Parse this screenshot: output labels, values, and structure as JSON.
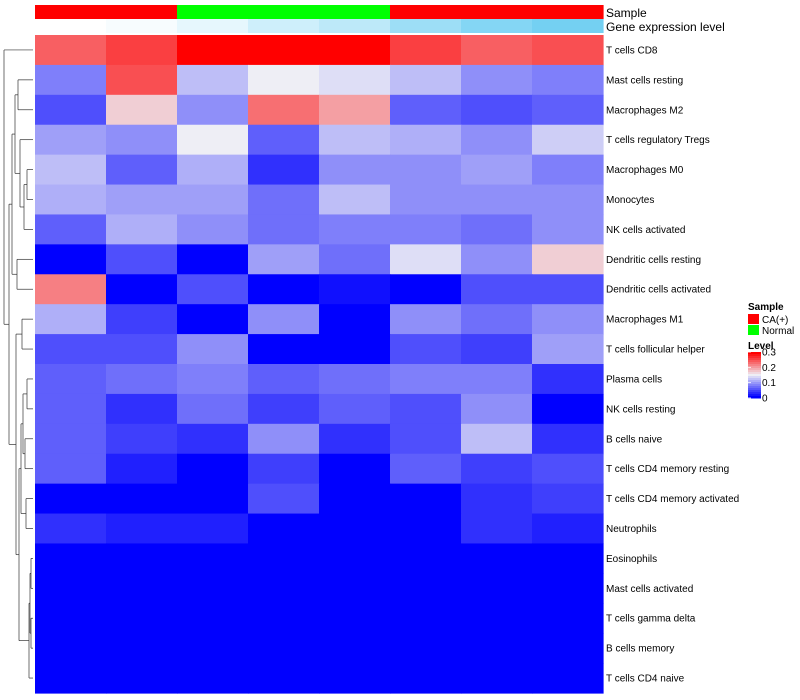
{
  "chart_data": {
    "type": "heatmap",
    "columns": 8,
    "rows": [
      "T cells CD8",
      "Mast cells resting",
      "Macrophages M2",
      "T cells regulatory  Tregs",
      "Macrophages M0",
      "Monocytes",
      "NK cells activated",
      "Dendritic cells resting",
      "Dendritic cells activated",
      "Macrophages M1",
      "T cells follicular helper",
      "Plasma cells",
      "NK cells resting",
      "B cells naive",
      "T cells CD4 memory resting",
      "T cells CD4 memory activated",
      "Neutrophils",
      "Eosinophils",
      "Mast cells activated",
      "T cells gamma delta",
      "B cells memory",
      "T cells CD4 naive"
    ],
    "values": [
      [
        0.24,
        0.26,
        0.3,
        0.3,
        0.3,
        0.26,
        0.24,
        0.25
      ],
      [
        0.08,
        0.25,
        0.12,
        0.15,
        0.14,
        0.12,
        0.09,
        0.08
      ],
      [
        0.05,
        0.17,
        0.09,
        0.23,
        0.2,
        0.06,
        0.05,
        0.06
      ],
      [
        0.1,
        0.09,
        0.15,
        0.06,
        0.12,
        0.11,
        0.09,
        0.13
      ],
      [
        0.12,
        0.06,
        0.11,
        0.03,
        0.09,
        0.09,
        0.1,
        0.08
      ],
      [
        0.11,
        0.1,
        0.1,
        0.07,
        0.12,
        0.09,
        0.09,
        0.09
      ],
      [
        0.06,
        0.11,
        0.09,
        0.07,
        0.08,
        0.08,
        0.07,
        0.09
      ],
      [
        0.0,
        0.05,
        0.0,
        0.1,
        0.07,
        0.14,
        0.09,
        0.17
      ],
      [
        0.22,
        0.0,
        0.05,
        0.0,
        0.01,
        0.0,
        0.05,
        0.05
      ],
      [
        0.11,
        0.04,
        0.0,
        0.09,
        0.0,
        0.09,
        0.07,
        0.09
      ],
      [
        0.05,
        0.05,
        0.09,
        0.0,
        0.0,
        0.05,
        0.04,
        0.1
      ],
      [
        0.06,
        0.07,
        0.08,
        0.06,
        0.07,
        0.08,
        0.08,
        0.03
      ],
      [
        0.06,
        0.03,
        0.07,
        0.04,
        0.06,
        0.05,
        0.09,
        0.0
      ],
      [
        0.06,
        0.04,
        0.03,
        0.09,
        0.03,
        0.05,
        0.12,
        0.03
      ],
      [
        0.06,
        0.02,
        0.0,
        0.04,
        0.0,
        0.06,
        0.04,
        0.05
      ],
      [
        0.0,
        0.0,
        0.0,
        0.05,
        0.0,
        0.0,
        0.03,
        0.04
      ],
      [
        0.03,
        0.02,
        0.02,
        0.0,
        0.0,
        0.0,
        0.03,
        0.02
      ],
      [
        0.0,
        0.0,
        0.0,
        0.0,
        0.0,
        0.0,
        0.0,
        0.0
      ],
      [
        0.0,
        0.0,
        0.0,
        0.0,
        0.0,
        0.0,
        0.0,
        0.0
      ],
      [
        0.0,
        0.0,
        0.0,
        0.0,
        0.0,
        0.0,
        0.0,
        0.0
      ],
      [
        0.0,
        0.0,
        0.0,
        0.0,
        0.0,
        0.0,
        0.0,
        0.0
      ],
      [
        0.0,
        0.0,
        0.0,
        0.0,
        0.0,
        0.0,
        0.0,
        0.0
      ]
    ],
    "annotation_tracks": [
      {
        "name": "Sample",
        "values": [
          "CA(+)",
          "CA(+)",
          "Normal",
          "Normal",
          "Normal",
          "CA(+)",
          "CA(+)",
          "CA(+)"
        ]
      },
      {
        "name": "Gene expression level",
        "values": [
          0.0,
          0.05,
          0.15,
          0.3,
          0.4,
          0.6,
          0.75,
          0.85
        ]
      }
    ],
    "legend": {
      "sample_title": "Sample",
      "sample_entries": [
        {
          "label": "CA(+)",
          "color": "#ff0000"
        },
        {
          "label": "Normal",
          "color": "#00ff00"
        }
      ],
      "level_title": "Level",
      "level_ticks": [
        "0.3",
        "0.2",
        "0.1",
        "0"
      ],
      "level_tick_values": [
        0.3,
        0.2,
        0.1,
        0.0
      ]
    },
    "color_scale": {
      "low": "#0000ff",
      "mid": "#eeeef5",
      "high": "#ff0000",
      "min": 0,
      "max": 0.3
    },
    "gene_expression_colors": {
      "low": "#ffffff",
      "high": "#5bc8f0"
    },
    "dendrogram": "hierarchical clustering of rows (left side)"
  }
}
